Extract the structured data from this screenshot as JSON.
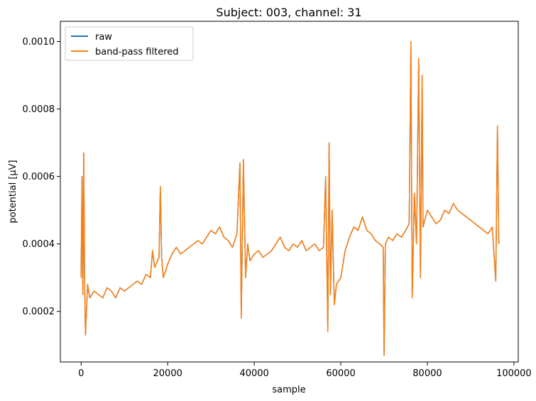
{
  "chart_data": {
    "type": "line",
    "title": "Subject: 003, channel: 31",
    "xlabel": "sample",
    "ylabel": "potential [μV]",
    "xlim": [
      -4800,
      101000
    ],
    "ylim": [
      5e-05,
      0.00106
    ],
    "xticks": [
      0,
      20000,
      40000,
      60000,
      80000,
      100000
    ],
    "xtick_labels": [
      "0",
      "20000",
      "40000",
      "60000",
      "80000",
      "100000"
    ],
    "yticks": [
      0.0002,
      0.0004,
      0.0006,
      0.0008,
      0.001
    ],
    "ytick_labels": [
      "0.0002",
      "0.0004",
      "0.0006",
      "0.0008",
      "0.0010"
    ],
    "grid": false,
    "legend_position": "top-left",
    "series": [
      {
        "name": "raw",
        "color": "#1f77b4",
        "x": [
          0,
          200,
          400,
          600,
          800,
          1000,
          1500,
          2000,
          3000,
          4000,
          5000,
          6000,
          7000,
          8000,
          9000,
          10000,
          11000,
          12000,
          13000,
          14000,
          15000,
          16000,
          16500,
          17000,
          18000,
          18300,
          18600,
          19000,
          20000,
          21000,
          22000,
          23000,
          24000,
          25000,
          26000,
          27000,
          28000,
          29000,
          30000,
          31000,
          32000,
          33000,
          34000,
          35000,
          36000,
          36700,
          37000,
          37500,
          38000,
          38500,
          39000,
          40000,
          41000,
          42000,
          43000,
          44000,
          45000,
          46000,
          47000,
          48000,
          49000,
          50000,
          51000,
          52000,
          53000,
          54000,
          55000,
          56000,
          56500,
          57000,
          57300,
          57600,
          58000,
          58500,
          59000,
          60000,
          61000,
          62000,
          63000,
          64000,
          65000,
          66000,
          67000,
          68000,
          69000,
          69800,
          70000,
          70300,
          71000,
          72000,
          73000,
          74000,
          75000,
          75800,
          76200,
          76500,
          77000,
          77500,
          78000,
          78400,
          78800,
          79000,
          80000,
          81000,
          82000,
          83000,
          84000,
          85000,
          86000,
          87000,
          88000,
          89000,
          90000,
          91000,
          92000,
          93000,
          94000,
          95000,
          95800,
          96200,
          96500
        ],
        "values": [
          0.0003,
          0.0006,
          0.00025,
          0.00067,
          0.0003,
          0.00013,
          0.00028,
          0.00024,
          0.00026,
          0.00025,
          0.00024,
          0.00027,
          0.00026,
          0.00024,
          0.00027,
          0.00026,
          0.00027,
          0.00028,
          0.00029,
          0.00028,
          0.00031,
          0.0003,
          0.00038,
          0.00033,
          0.00036,
          0.00057,
          0.00036,
          0.0003,
          0.00034,
          0.00037,
          0.00039,
          0.00037,
          0.00038,
          0.00039,
          0.0004,
          0.00041,
          0.0004,
          0.00042,
          0.00044,
          0.00043,
          0.00045,
          0.00042,
          0.00041,
          0.00039,
          0.00043,
          0.00064,
          0.00018,
          0.00065,
          0.0003,
          0.0004,
          0.00035,
          0.00037,
          0.00038,
          0.00036,
          0.00037,
          0.00038,
          0.0004,
          0.00042,
          0.00039,
          0.00038,
          0.0004,
          0.00039,
          0.00041,
          0.00038,
          0.00039,
          0.0004,
          0.00038,
          0.00039,
          0.0006,
          0.00014,
          0.0007,
          0.00025,
          0.0005,
          0.00022,
          0.00028,
          0.0003,
          0.00038,
          0.00042,
          0.00045,
          0.00044,
          0.00048,
          0.00044,
          0.00043,
          0.00041,
          0.0004,
          0.00039,
          7e-05,
          0.0004,
          0.00042,
          0.00041,
          0.00043,
          0.00042,
          0.00044,
          0.00046,
          0.001,
          0.00024,
          0.00055,
          0.0004,
          0.00095,
          0.0003,
          0.0009,
          0.00045,
          0.0005,
          0.00048,
          0.00046,
          0.00047,
          0.0005,
          0.00049,
          0.00052,
          0.0005,
          0.00049,
          0.00048,
          0.00047,
          0.00046,
          0.00045,
          0.00044,
          0.00043,
          0.00045,
          0.00029,
          0.00075,
          0.0004
        ]
      },
      {
        "name": "band-pass filtered",
        "color": "#ff7f0e",
        "x": [
          0,
          200,
          400,
          600,
          800,
          1000,
          1500,
          2000,
          3000,
          4000,
          5000,
          6000,
          7000,
          8000,
          9000,
          10000,
          11000,
          12000,
          13000,
          14000,
          15000,
          16000,
          16500,
          17000,
          18000,
          18300,
          18600,
          19000,
          20000,
          21000,
          22000,
          23000,
          24000,
          25000,
          26000,
          27000,
          28000,
          29000,
          30000,
          31000,
          32000,
          33000,
          34000,
          35000,
          36000,
          36700,
          37000,
          37500,
          38000,
          38500,
          39000,
          40000,
          41000,
          42000,
          43000,
          44000,
          45000,
          46000,
          47000,
          48000,
          49000,
          50000,
          51000,
          52000,
          53000,
          54000,
          55000,
          56000,
          56500,
          57000,
          57300,
          57600,
          58000,
          58500,
          59000,
          60000,
          61000,
          62000,
          63000,
          64000,
          65000,
          66000,
          67000,
          68000,
          69000,
          69800,
          70000,
          70300,
          71000,
          72000,
          73000,
          74000,
          75000,
          75800,
          76200,
          76500,
          77000,
          77500,
          78000,
          78400,
          78800,
          79000,
          80000,
          81000,
          82000,
          83000,
          84000,
          85000,
          86000,
          87000,
          88000,
          89000,
          90000,
          91000,
          92000,
          93000,
          94000,
          95000,
          95800,
          96200,
          96500
        ],
        "values": [
          0.0003,
          0.0006,
          0.00025,
          0.00067,
          0.0003,
          0.00013,
          0.00028,
          0.00024,
          0.00026,
          0.00025,
          0.00024,
          0.00027,
          0.00026,
          0.00024,
          0.00027,
          0.00026,
          0.00027,
          0.00028,
          0.00029,
          0.00028,
          0.00031,
          0.0003,
          0.00038,
          0.00033,
          0.00036,
          0.00057,
          0.00036,
          0.0003,
          0.00034,
          0.00037,
          0.00039,
          0.00037,
          0.00038,
          0.00039,
          0.0004,
          0.00041,
          0.0004,
          0.00042,
          0.00044,
          0.00043,
          0.00045,
          0.00042,
          0.00041,
          0.00039,
          0.00043,
          0.00064,
          0.00018,
          0.00065,
          0.0003,
          0.0004,
          0.00035,
          0.00037,
          0.00038,
          0.00036,
          0.00037,
          0.00038,
          0.0004,
          0.00042,
          0.00039,
          0.00038,
          0.0004,
          0.00039,
          0.00041,
          0.00038,
          0.00039,
          0.0004,
          0.00038,
          0.00039,
          0.0006,
          0.00014,
          0.0007,
          0.00025,
          0.0005,
          0.00022,
          0.00028,
          0.0003,
          0.00038,
          0.00042,
          0.00045,
          0.00044,
          0.00048,
          0.00044,
          0.00043,
          0.00041,
          0.0004,
          0.00039,
          7e-05,
          0.0004,
          0.00042,
          0.00041,
          0.00043,
          0.00042,
          0.00044,
          0.00046,
          0.001,
          0.00024,
          0.00055,
          0.0004,
          0.00095,
          0.0003,
          0.0009,
          0.00045,
          0.0005,
          0.00048,
          0.00046,
          0.00047,
          0.0005,
          0.00049,
          0.00052,
          0.0005,
          0.00049,
          0.00048,
          0.00047,
          0.00046,
          0.00045,
          0.00044,
          0.00043,
          0.00045,
          0.00029,
          0.00075,
          0.0004
        ]
      }
    ]
  }
}
